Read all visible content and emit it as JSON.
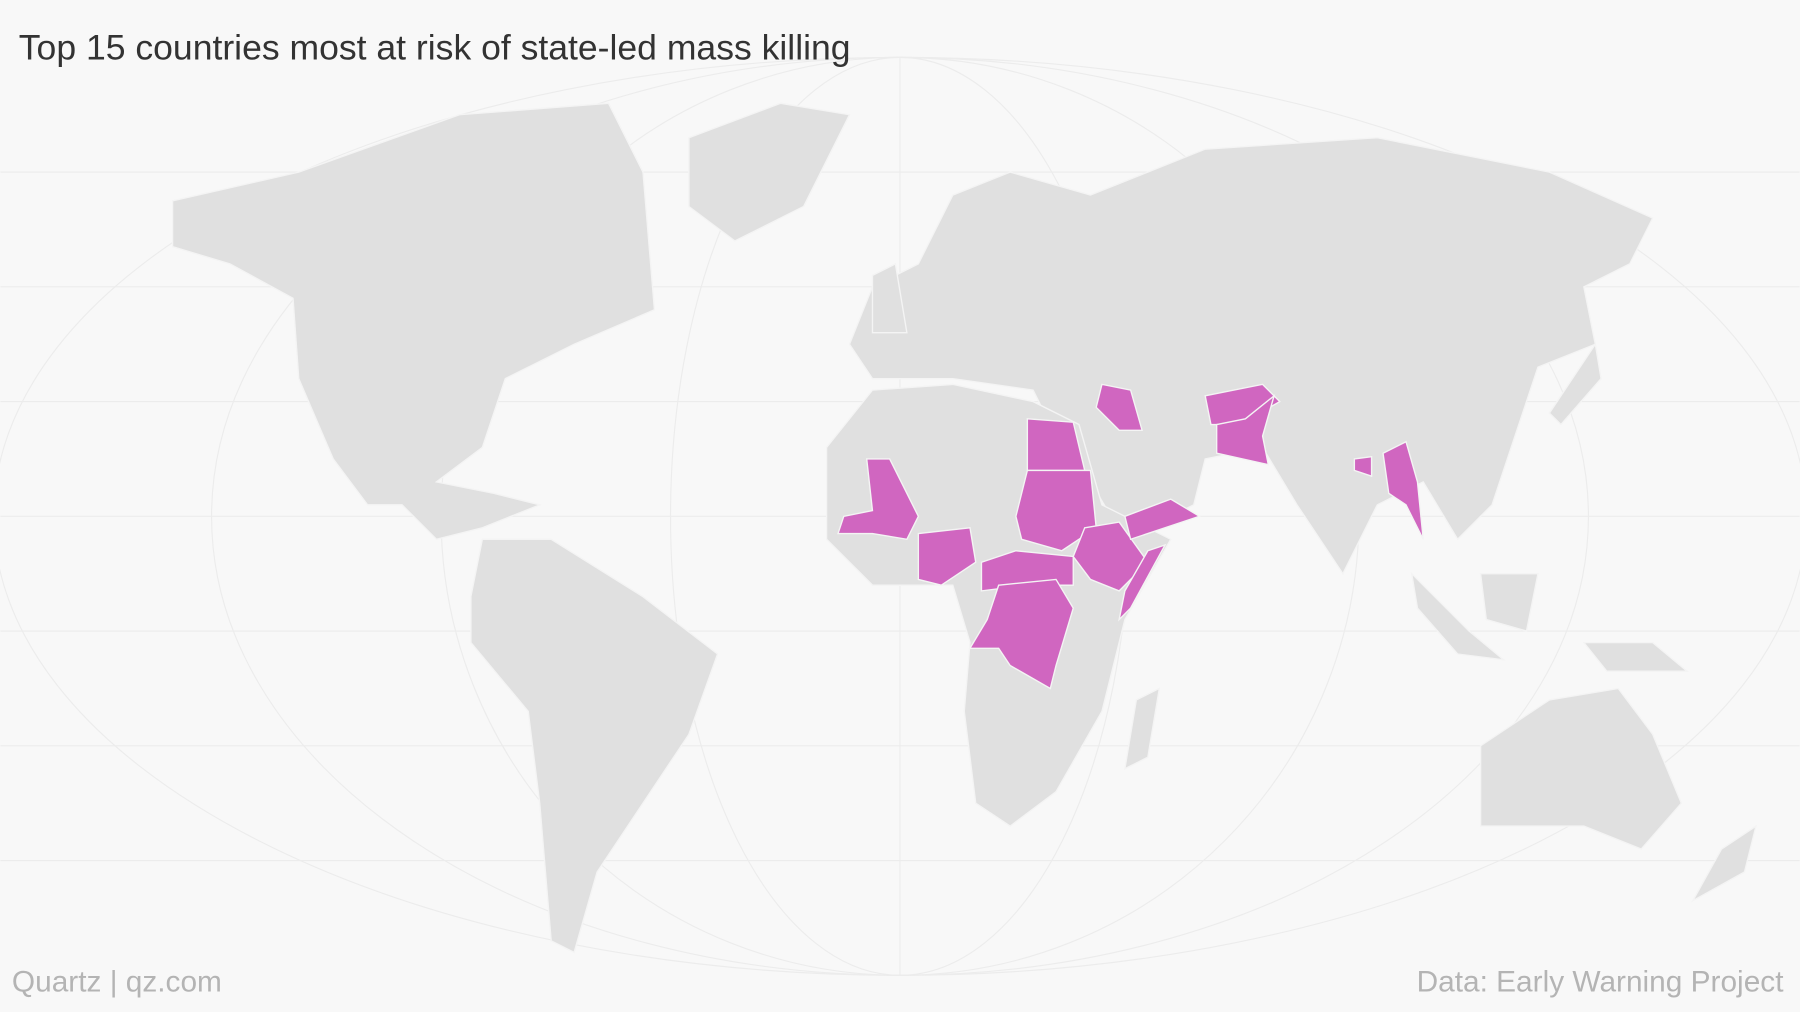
{
  "header": {
    "title": "Top 15 countries most at risk of state-led mass killing"
  },
  "footer": {
    "credit": "Quartz | qz.com",
    "source": "Data: Early Warning Project"
  }
}
